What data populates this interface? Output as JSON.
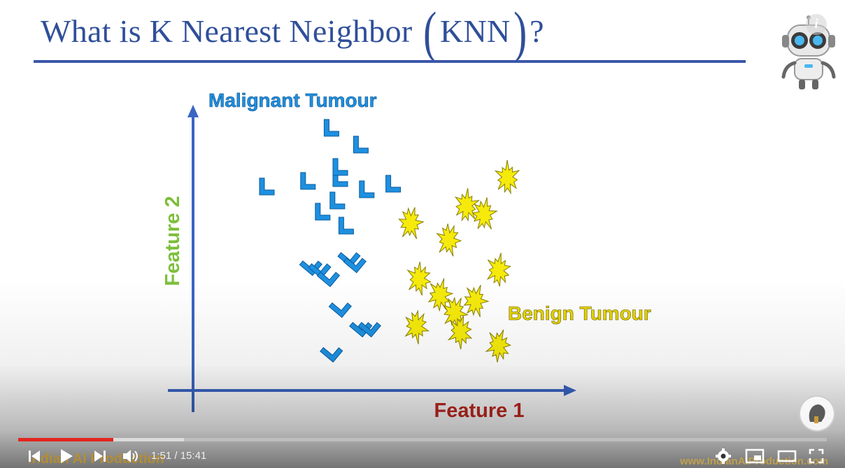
{
  "slide": {
    "title_prefix": "What is K Nearest Neighbor ",
    "paren_open": "(",
    "title_acronym": "KNN",
    "paren_close": ")",
    "title_suffix": "?"
  },
  "chart_data": {
    "type": "scatter",
    "xlabel": "Feature 1",
    "ylabel": "Feature 2",
    "grid": false,
    "series": [
      {
        "name": "Malignant Tumour",
        "marker": "L-shape",
        "color": "#1e90e0",
        "points": [
          [
            2.5,
            7.3
          ],
          [
            3.9,
            7.5
          ],
          [
            4.7,
            9.4
          ],
          [
            5.7,
            8.8
          ],
          [
            6.8,
            7.4
          ],
          [
            5.0,
            7.6
          ],
          [
            5.0,
            8.0
          ],
          [
            5.9,
            7.2
          ],
          [
            4.4,
            6.4
          ],
          [
            4.9,
            6.8
          ],
          [
            5.2,
            5.9
          ],
          [
            5.3,
            4.8
          ],
          [
            5.5,
            4.6
          ],
          [
            4.0,
            4.5
          ],
          [
            4.3,
            4.4
          ],
          [
            4.6,
            4.1
          ],
          [
            5.0,
            3.0
          ],
          [
            5.7,
            2.3
          ],
          [
            6.0,
            2.3
          ],
          [
            4.7,
            1.4
          ]
        ]
      },
      {
        "name": "Benign Tumour",
        "marker": "star",
        "color": "#f5ea0b",
        "points": [
          [
            10.7,
            7.6
          ],
          [
            9.3,
            6.6
          ],
          [
            9.9,
            6.3
          ],
          [
            7.4,
            6.0
          ],
          [
            8.7,
            5.4
          ],
          [
            7.7,
            4.0
          ],
          [
            10.4,
            4.3
          ],
          [
            8.4,
            3.4
          ],
          [
            9.6,
            3.2
          ],
          [
            8.9,
            2.8
          ],
          [
            7.6,
            2.3
          ],
          [
            9.1,
            2.1
          ],
          [
            10.4,
            1.6
          ]
        ]
      }
    ]
  },
  "player": {
    "current_time": "1:51",
    "duration": "15:41",
    "time_separator": " / ",
    "progress_played": 0.118,
    "progress_buffered": 0.205,
    "watermark_left": "Indian AI Production",
    "watermark_right": "www.IndianAIProduction.com"
  },
  "icons": {
    "info": "i"
  }
}
